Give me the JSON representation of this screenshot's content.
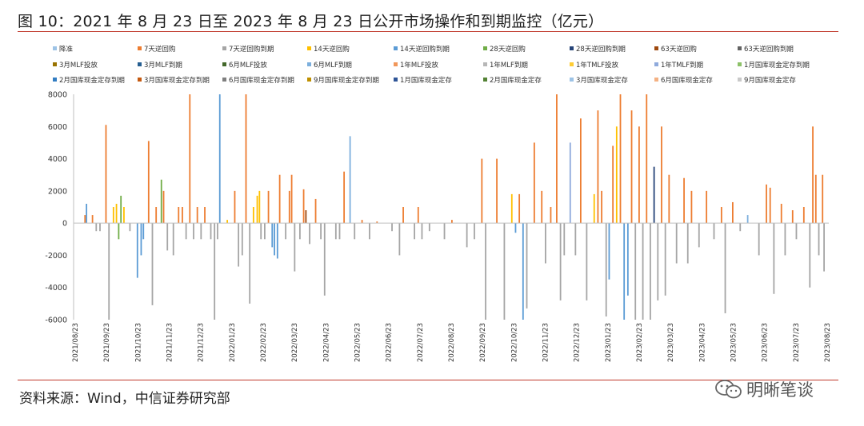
{
  "title": "图 10：2021 年 8 月 23 日至 2023 年 8 月 23 日公开市场操作和到期监控（亿元）",
  "source": "资料来源：Wind，中信证券研究部",
  "watermark": "明晰笔谈",
  "chart_data": {
    "type": "bar",
    "ylim": [
      -6000,
      8000
    ],
    "yticks": [
      8000,
      6000,
      4000,
      2000,
      0,
      -2000,
      -4000,
      -6000
    ],
    "x_ticks": [
      "2021/08/23",
      "2021/09/23",
      "2021/10/23",
      "2021/11/23",
      "2021/12/23",
      "2022/01/23",
      "2022/02/23",
      "2022/03/23",
      "2022/04/23",
      "2022/05/23",
      "2022/06/23",
      "2022/07/23",
      "2022/08/23",
      "2022/09/23",
      "2022/10/23",
      "2022/11/23",
      "2022/12/23",
      "2023/01/23",
      "2023/02/23",
      "2023/03/23",
      "2023/04/23",
      "2023/05/23",
      "2023/06/23",
      "2023/07/23",
      "2023/08/23"
    ],
    "grid": false,
    "legend_position": "top",
    "series": [
      {
        "name": "降准",
        "color": "#9dc3e6"
      },
      {
        "name": "7天逆回购",
        "color": "#ed7d31"
      },
      {
        "name": "7天逆回购到期",
        "color": "#a5a5a5"
      },
      {
        "name": "14天逆回购",
        "color": "#ffc000"
      },
      {
        "name": "14天逆回购到期",
        "color": "#5b9bd5"
      },
      {
        "name": "28天逆回购",
        "color": "#70ad47"
      },
      {
        "name": "28天逆回购到期",
        "color": "#264478"
      },
      {
        "name": "63天逆回购",
        "color": "#9e480e"
      },
      {
        "name": "63天逆回购到期",
        "color": "#636363"
      },
      {
        "name": "3月MLF投放",
        "color": "#997300"
      },
      {
        "name": "3月MLF到期",
        "color": "#255e91"
      },
      {
        "name": "6月MLF投放",
        "color": "#43682b"
      },
      {
        "name": "6月MLF到期",
        "color": "#7cafdd"
      },
      {
        "name": "1年MLF投放",
        "color": "#f1975a"
      },
      {
        "name": "1年MLF到期",
        "color": "#b7b7b7"
      },
      {
        "name": "1年TMLF投放",
        "color": "#ffcd33"
      },
      {
        "name": "1年TMLF到期",
        "color": "#8faadc"
      },
      {
        "name": "1月国库现金定存到期",
        "color": "#8cc168"
      },
      {
        "name": "2月国库现金定存到期",
        "color": "#327dc2"
      },
      {
        "name": "3月国库现金定存到期",
        "color": "#c55a11"
      },
      {
        "name": "6月国库现金定存到期",
        "color": "#7f7f7f"
      },
      {
        "name": "9月国库现金定存到期",
        "color": "#bf9000"
      },
      {
        "name": "1月国库现金定存",
        "color": "#2f5597"
      },
      {
        "name": "2月国库现金定存",
        "color": "#548235"
      },
      {
        "name": "3月国库现金定存",
        "color": "#9dc3e6"
      },
      {
        "name": "6月国库现金定存",
        "color": "#f4b183"
      },
      {
        "name": "9月国库现金定存",
        "color": "#c9c9c9"
      }
    ],
    "bars": [
      {
        "x": 0.01,
        "v": 500,
        "s": 1
      },
      {
        "x": 0.012,
        "v": 1200,
        "s": 4
      },
      {
        "x": 0.02,
        "v": 500,
        "s": 1
      },
      {
        "x": 0.025,
        "v": -500,
        "s": 2
      },
      {
        "x": 0.03,
        "v": -500,
        "s": 2
      },
      {
        "x": 0.038,
        "v": 6100,
        "s": 1
      },
      {
        "x": 0.042,
        "v": -6000,
        "s": 2
      },
      {
        "x": 0.048,
        "v": 1000,
        "s": 3
      },
      {
        "x": 0.052,
        "v": 1200,
        "s": 3
      },
      {
        "x": 0.055,
        "v": -1000,
        "s": 5
      },
      {
        "x": 0.058,
        "v": 1700,
        "s": 5
      },
      {
        "x": 0.062,
        "v": 1000,
        "s": 3
      },
      {
        "x": 0.07,
        "v": -500,
        "s": 2
      },
      {
        "x": 0.08,
        "v": -3400,
        "s": 4
      },
      {
        "x": 0.085,
        "v": -2000,
        "s": 4
      },
      {
        "x": 0.088,
        "v": -1000,
        "s": 4
      },
      {
        "x": 0.095,
        "v": 5100,
        "s": 1
      },
      {
        "x": 0.1,
        "v": -5100,
        "s": 2
      },
      {
        "x": 0.105,
        "v": 1000,
        "s": 1
      },
      {
        "x": 0.112,
        "v": 2700,
        "s": 5
      },
      {
        "x": 0.115,
        "v": 2000,
        "s": 1
      },
      {
        "x": 0.12,
        "v": -1700,
        "s": 2
      },
      {
        "x": 0.128,
        "v": -2000,
        "s": 2
      },
      {
        "x": 0.135,
        "v": 1000,
        "s": 1
      },
      {
        "x": 0.14,
        "v": 1000,
        "s": 1
      },
      {
        "x": 0.145,
        "v": -1000,
        "s": 2
      },
      {
        "x": 0.15,
        "v": 8000,
        "s": 1
      },
      {
        "x": 0.155,
        "v": -1000,
        "s": 2
      },
      {
        "x": 0.16,
        "v": 1000,
        "s": 1
      },
      {
        "x": 0.165,
        "v": -1000,
        "s": 2
      },
      {
        "x": 0.17,
        "v": 1000,
        "s": 1
      },
      {
        "x": 0.178,
        "v": -1000,
        "s": 2
      },
      {
        "x": 0.183,
        "v": -6000,
        "s": 2
      },
      {
        "x": 0.187,
        "v": -1000,
        "s": 2
      },
      {
        "x": 0.19,
        "v": 8000,
        "s": 4
      },
      {
        "x": 0.2,
        "v": 200,
        "s": 3
      },
      {
        "x": 0.21,
        "v": 2000,
        "s": 1
      },
      {
        "x": 0.215,
        "v": -2700,
        "s": 2
      },
      {
        "x": 0.22,
        "v": -2000,
        "s": 2
      },
      {
        "x": 0.225,
        "v": 8000,
        "s": 1
      },
      {
        "x": 0.23,
        "v": -5000,
        "s": 2
      },
      {
        "x": 0.235,
        "v": 1000,
        "s": 3
      },
      {
        "x": 0.24,
        "v": 1700,
        "s": 3
      },
      {
        "x": 0.243,
        "v": 2000,
        "s": 3
      },
      {
        "x": 0.245,
        "v": -1000,
        "s": 2
      },
      {
        "x": 0.25,
        "v": -1000,
        "s": 2
      },
      {
        "x": 0.255,
        "v": 2000,
        "s": 1
      },
      {
        "x": 0.26,
        "v": -1500,
        "s": 4
      },
      {
        "x": 0.263,
        "v": -2000,
        "s": 4
      },
      {
        "x": 0.267,
        "v": -2200,
        "s": 4
      },
      {
        "x": 0.27,
        "v": 3000,
        "s": 1
      },
      {
        "x": 0.278,
        "v": -1000,
        "s": 2
      },
      {
        "x": 0.283,
        "v": 2000,
        "s": 1
      },
      {
        "x": 0.286,
        "v": 3000,
        "s": 1
      },
      {
        "x": 0.29,
        "v": -3000,
        "s": 2
      },
      {
        "x": 0.297,
        "v": -1000,
        "s": 2
      },
      {
        "x": 0.302,
        "v": 2100,
        "s": 1
      },
      {
        "x": 0.305,
        "v": 800,
        "s": 7
      },
      {
        "x": 0.31,
        "v": -1300,
        "s": 2
      },
      {
        "x": 0.318,
        "v": 1500,
        "s": 1
      },
      {
        "x": 0.325,
        "v": -1000,
        "s": 2
      },
      {
        "x": 0.33,
        "v": -4500,
        "s": 2
      },
      {
        "x": 0.345,
        "v": -1000,
        "s": 2
      },
      {
        "x": 0.35,
        "v": -1000,
        "s": 2
      },
      {
        "x": 0.356,
        "v": 3200,
        "s": 1
      },
      {
        "x": 0.364,
        "v": 5400,
        "s": 12
      },
      {
        "x": 0.37,
        "v": -1000,
        "s": 2
      },
      {
        "x": 0.38,
        "v": 200,
        "s": 1
      },
      {
        "x": 0.39,
        "v": -1000,
        "s": 2
      },
      {
        "x": 0.4,
        "v": 100,
        "s": 1
      },
      {
        "x": 0.42,
        "v": -500,
        "s": 2
      },
      {
        "x": 0.43,
        "v": -2000,
        "s": 2
      },
      {
        "x": 0.435,
        "v": 1000,
        "s": 1
      },
      {
        "x": 0.45,
        "v": -1000,
        "s": 2
      },
      {
        "x": 0.455,
        "v": 1000,
        "s": 1
      },
      {
        "x": 0.46,
        "v": -1000,
        "s": 2
      },
      {
        "x": 0.47,
        "v": -500,
        "s": 2
      },
      {
        "x": 0.49,
        "v": -1000,
        "s": 2
      },
      {
        "x": 0.5,
        "v": 200,
        "s": 1
      },
      {
        "x": 0.52,
        "v": -1500,
        "s": 2
      },
      {
        "x": 0.53,
        "v": -1000,
        "s": 2
      },
      {
        "x": 0.54,
        "v": 4000,
        "s": 1
      },
      {
        "x": 0.545,
        "v": -6000,
        "s": 2
      },
      {
        "x": 0.56,
        "v": 4000,
        "s": 1
      },
      {
        "x": 0.57,
        "v": -6000,
        "s": 2
      },
      {
        "x": 0.58,
        "v": 1800,
        "s": 3
      },
      {
        "x": 0.585,
        "v": -600,
        "s": 4
      },
      {
        "x": 0.59,
        "v": 1800,
        "s": 1
      },
      {
        "x": 0.595,
        "v": -6000,
        "s": 4
      },
      {
        "x": 0.6,
        "v": -5300,
        "s": 2
      },
      {
        "x": 0.61,
        "v": 5000,
        "s": 1
      },
      {
        "x": 0.62,
        "v": 2000,
        "s": 1
      },
      {
        "x": 0.625,
        "v": -2500,
        "s": 2
      },
      {
        "x": 0.632,
        "v": 1000,
        "s": 1
      },
      {
        "x": 0.64,
        "v": 8000,
        "s": 1
      },
      {
        "x": 0.645,
        "v": -4800,
        "s": 2
      },
      {
        "x": 0.65,
        "v": -2000,
        "s": 2
      },
      {
        "x": 0.658,
        "v": 5000,
        "s": 16
      },
      {
        "x": 0.665,
        "v": -2000,
        "s": 2
      },
      {
        "x": 0.672,
        "v": 6500,
        "s": 1
      },
      {
        "x": 0.68,
        "v": -4800,
        "s": 2
      },
      {
        "x": 0.69,
        "v": 1800,
        "s": 3
      },
      {
        "x": 0.695,
        "v": 7000,
        "s": 1
      },
      {
        "x": 0.7,
        "v": 2000,
        "s": 1
      },
      {
        "x": 0.706,
        "v": -5800,
        "s": 2
      },
      {
        "x": 0.71,
        "v": -3500,
        "s": 4
      },
      {
        "x": 0.715,
        "v": 4800,
        "s": 1
      },
      {
        "x": 0.72,
        "v": 6000,
        "s": 3
      },
      {
        "x": 0.725,
        "v": 8000,
        "s": 1
      },
      {
        "x": 0.73,
        "v": -6000,
        "s": 4
      },
      {
        "x": 0.735,
        "v": -4500,
        "s": 4
      },
      {
        "x": 0.74,
        "v": 7000,
        "s": 1
      },
      {
        "x": 0.745,
        "v": -6000,
        "s": 2
      },
      {
        "x": 0.75,
        "v": 6000,
        "s": 1
      },
      {
        "x": 0.755,
        "v": -6000,
        "s": 2
      },
      {
        "x": 0.76,
        "v": 8000,
        "s": 1
      },
      {
        "x": 0.765,
        "v": -6000,
        "s": 2
      },
      {
        "x": 0.77,
        "v": 3500,
        "s": 6
      },
      {
        "x": 0.775,
        "v": -4800,
        "s": 2
      },
      {
        "x": 0.78,
        "v": 6000,
        "s": 1
      },
      {
        "x": 0.785,
        "v": -4500,
        "s": 2
      },
      {
        "x": 0.79,
        "v": 3000,
        "s": 1
      },
      {
        "x": 0.8,
        "v": -2500,
        "s": 2
      },
      {
        "x": 0.81,
        "v": 2800,
        "s": 1
      },
      {
        "x": 0.815,
        "v": -2500,
        "s": 2
      },
      {
        "x": 0.82,
        "v": 2000,
        "s": 1
      },
      {
        "x": 0.83,
        "v": -1500,
        "s": 2
      },
      {
        "x": 0.84,
        "v": 2000,
        "s": 1
      },
      {
        "x": 0.85,
        "v": -1000,
        "s": 2
      },
      {
        "x": 0.86,
        "v": 1000,
        "s": 1
      },
      {
        "x": 0.865,
        "v": -5600,
        "s": 2
      },
      {
        "x": 0.875,
        "v": 1300,
        "s": 1
      },
      {
        "x": 0.885,
        "v": -500,
        "s": 2
      },
      {
        "x": 0.895,
        "v": 500,
        "s": 12
      },
      {
        "x": 0.91,
        "v": -2000,
        "s": 2
      },
      {
        "x": 0.92,
        "v": 2400,
        "s": 1
      },
      {
        "x": 0.925,
        "v": 2200,
        "s": 1
      },
      {
        "x": 0.93,
        "v": -4400,
        "s": 2
      },
      {
        "x": 0.94,
        "v": 1200,
        "s": 1
      },
      {
        "x": 0.945,
        "v": -2000,
        "s": 2
      },
      {
        "x": 0.955,
        "v": 800,
        "s": 1
      },
      {
        "x": 0.96,
        "v": -1000,
        "s": 2
      },
      {
        "x": 0.97,
        "v": 1000,
        "s": 1
      },
      {
        "x": 0.978,
        "v": -4000,
        "s": 2
      },
      {
        "x": 0.982,
        "v": 6000,
        "s": 1
      },
      {
        "x": 0.986,
        "v": 3000,
        "s": 1
      },
      {
        "x": 0.99,
        "v": -2000,
        "s": 2
      },
      {
        "x": 0.995,
        "v": 3000,
        "s": 1
      },
      {
        "x": 0.997,
        "v": -3000,
        "s": 2
      }
    ]
  }
}
